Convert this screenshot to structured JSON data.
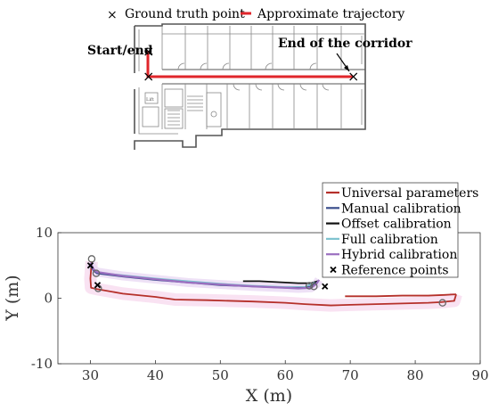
{
  "floorplan": {
    "legend": [
      {
        "symbol": "×",
        "label": "Ground truth point"
      },
      {
        "symbol": "line",
        "label": "Approximate trajectory",
        "color": "#e0262b"
      }
    ],
    "labels": {
      "start": "Start/end",
      "corridor_end": "End of the corridor",
      "lift": "Lift"
    }
  },
  "chart_data": {
    "type": "line",
    "title": "",
    "xlabel": "X (m)",
    "ylabel": "Y (m)",
    "xlim": [
      25,
      90
    ],
    "ylim": [
      -10,
      10
    ],
    "xticks": [
      30,
      40,
      50,
      60,
      70,
      80,
      90
    ],
    "yticks": [
      -10,
      0,
      10
    ],
    "grid": false,
    "legend_position": "top-right",
    "series": [
      {
        "name": "Universal parameters",
        "color": "#b5302a",
        "x": [
          30.2,
          30.0,
          30.1,
          31.0,
          35.0,
          40.0,
          43.0,
          48.0,
          55.0,
          60.0,
          63.0,
          67.0,
          70.0,
          74.0,
          78.0,
          82.0,
          84.0,
          86.0,
          86.3
        ],
        "y": [
          5.6,
          3.0,
          1.6,
          1.4,
          0.7,
          0.2,
          -0.2,
          -0.3,
          -0.5,
          -0.7,
          -0.9,
          -1.1,
          -1.0,
          -0.9,
          -0.8,
          -0.7,
          -0.6,
          -0.4,
          0.6
        ],
        "extra_segment": {
          "x": [
            69.2,
            74.0,
            78.0,
            82.0,
            84.5,
            86.3
          ],
          "y": [
            0.3,
            0.3,
            0.4,
            0.4,
            0.5,
            0.6
          ]
        }
      },
      {
        "name": "Manual calibration",
        "color": "#3b4f8c",
        "x": [
          30.0,
          30.5,
          31.0,
          35.0,
          40.0,
          45.0,
          50.0,
          55.0,
          60.0,
          63.0,
          64.0,
          64.8
        ],
        "y": [
          5.0,
          4.2,
          3.8,
          3.3,
          2.8,
          2.4,
          2.0,
          1.8,
          1.6,
          1.6,
          1.8,
          2.4
        ]
      },
      {
        "name": "Offset calibration",
        "color": "#111111",
        "x": [
          53.5,
          56.0,
          58.0,
          60.0,
          62.0,
          64.0,
          65.0
        ],
        "y": [
          2.6,
          2.6,
          2.5,
          2.4,
          2.3,
          2.3,
          2.6
        ]
      },
      {
        "name": "Full calibration",
        "color": "#7fc3cf",
        "x": [
          30.0,
          30.5,
          31.0,
          35.0,
          40.0,
          45.0,
          50.0,
          55.0,
          60.0,
          63.0,
          64.5
        ],
        "y": [
          5.2,
          4.3,
          3.9,
          3.5,
          3.0,
          2.6,
          2.2,
          1.9,
          1.7,
          1.7,
          2.4
        ]
      },
      {
        "name": "Hybrid calibration",
        "color": "#9b6fc0",
        "x": [
          30.0,
          30.5,
          31.0,
          35.0,
          40.0,
          45.0,
          50.0,
          55.0,
          60.0,
          62.0,
          64.0,
          64.8,
          65.2
        ],
        "y": [
          5.4,
          4.4,
          4.0,
          3.4,
          2.9,
          2.4,
          2.1,
          1.8,
          1.6,
          1.5,
          1.6,
          2.2,
          2.8
        ]
      },
      {
        "name": "Reference points",
        "marker": "x",
        "color": "#000000",
        "x": [
          30.0,
          31.1,
          66.1
        ],
        "y": [
          5.0,
          2.0,
          1.8
        ]
      }
    ],
    "circle_markers": {
      "x": [
        30.2,
        30.9,
        31.2,
        63.7,
        64.4,
        84.2
      ],
      "y": [
        6.0,
        3.8,
        1.5,
        1.9,
        1.8,
        -0.7
      ]
    }
  }
}
